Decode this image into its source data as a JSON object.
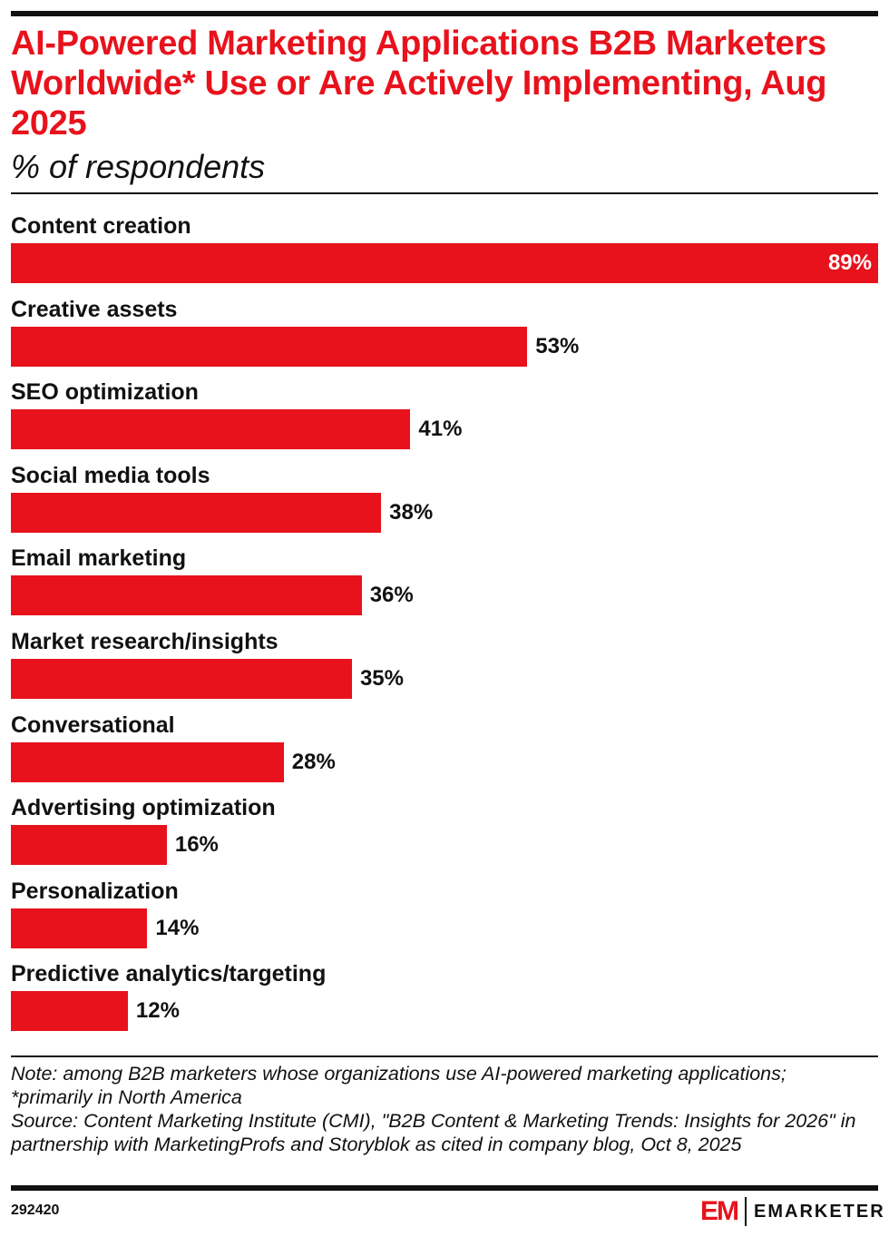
{
  "chart_data": {
    "type": "bar",
    "orientation": "horizontal",
    "title": "AI-Powered Marketing Applications B2B Marketers Worldwide* Use or Are Actively Implementing, Aug 2025",
    "subtitle": "% of respondents",
    "categories": [
      "Content creation",
      "Creative assets",
      "SEO optimization",
      "Social media tools",
      "Email marketing",
      "Market research/insights",
      "Conversational",
      "Advertising optimization",
      "Personalization",
      "Predictive analytics/targeting"
    ],
    "values": [
      89,
      53,
      41,
      38,
      36,
      35,
      28,
      16,
      14,
      12
    ],
    "labels": [
      "89%",
      "53%",
      "41%",
      "38%",
      "36%",
      "35%",
      "28%",
      "16%",
      "14%",
      "12%"
    ],
    "xlim": [
      0,
      89
    ],
    "grid": false,
    "bar_color": "#e8121c"
  },
  "footer": {
    "note": "Note: among B2B marketers whose organizations use AI-powered marketing applications; *primarily in North America",
    "source": "Source: Content Marketing Institute (CMI), \"B2B Content & Marketing Trends: Insights for 2026\" in partnership with MarketingProfs and Storyblok as cited in company blog, Oct 8, 2025",
    "chart_id": "292420",
    "brand": "EMARKETER",
    "brand_mark": "EM"
  }
}
